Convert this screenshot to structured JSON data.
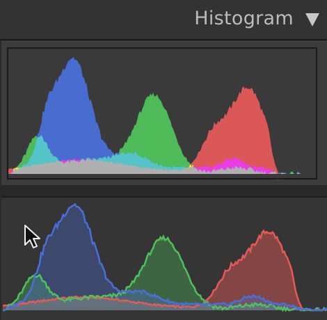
{
  "header": {
    "title": "Histogram",
    "collapse_icon": "triangle-down-icon"
  },
  "colors": {
    "red": "#e55a57",
    "green": "#4fc15a",
    "blue": "#4a6fd8",
    "cyan": "#55c4c8",
    "yellow": "#efe43a",
    "magenta": "#ef3ae8",
    "gray": "#b0b0b0",
    "panel": "#3c3c3c",
    "background": "#2a2a2a"
  },
  "histogram_top": {
    "style": "filled-overlap",
    "channels": [
      "red",
      "green",
      "blue"
    ]
  },
  "histogram_bottom": {
    "style": "outlined-overlap",
    "channels": [
      "red",
      "green",
      "blue"
    ]
  },
  "pointer_icon": "arrow-cursor-icon"
}
